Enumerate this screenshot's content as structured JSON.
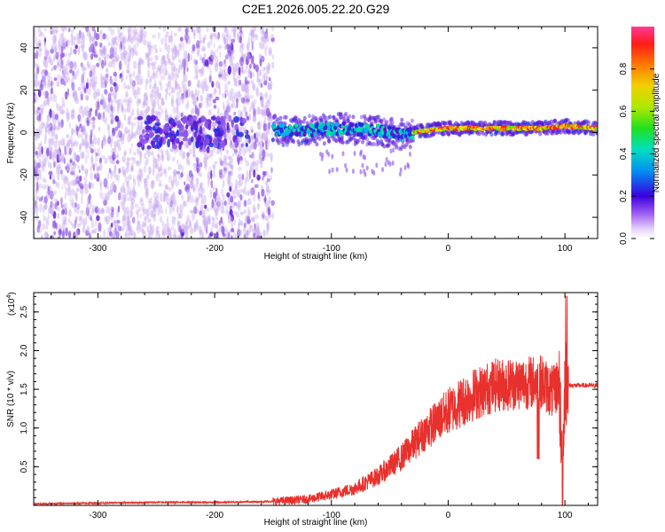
{
  "title": "C2E1.2026.005.22.20.G29",
  "colors": {
    "snr_line": "#e8302c",
    "colormap": [
      "#f1e6fb",
      "#c7a8f0",
      "#8d52e6",
      "#5a16d6",
      "#1f2ee0",
      "#00b4e6",
      "#00e09a",
      "#5ee600",
      "#e6e600",
      "#ff8a00",
      "#ff2020",
      "#ff2a8a"
    ]
  },
  "chart_data": [
    {
      "type": "heatmap",
      "name": "spectrogram",
      "xlabel": "Height of straight line (km)",
      "ylabel": "Frequency (Hz)",
      "xlim": [
        -355,
        128
      ],
      "ylim": [
        -50,
        50
      ],
      "xticks": [
        -300,
        -200,
        -100,
        0,
        100
      ],
      "xtick_labels": [
        "-300",
        "-200",
        "-100",
        "0",
        "100"
      ],
      "yticks": [
        -40,
        -20,
        0,
        20,
        40
      ],
      "ytick_labels": [
        "-40",
        "-20",
        "0",
        "20",
        "40"
      ],
      "grid": false,
      "colorbar": {
        "label": "Normalized spectral amplitude",
        "range": [
          0,
          1
        ],
        "ticks": [
          0,
          0.2,
          0.4,
          0.6,
          0.8
        ],
        "tick_labels": [
          "0.0",
          "0.2",
          "0.4",
          "0.6",
          "0.8"
        ]
      },
      "regions": [
        {
          "x": [
            -355,
            -150
          ],
          "freq": [
            -50,
            50
          ],
          "amplitude": [
            0.0,
            0.15
          ]
        },
        {
          "x": [
            -150,
            -30
          ],
          "freq": [
            -10,
            8
          ],
          "amplitude": [
            0.2,
            0.55
          ]
        },
        {
          "x": [
            -30,
            128
          ],
          "freq": [
            -2,
            6
          ],
          "amplitude": [
            0.6,
            0.95
          ]
        }
      ],
      "ridge": {
        "x": [
          -150,
          -120,
          -90,
          -60,
          -40,
          -20,
          0,
          20,
          40,
          60,
          80,
          100,
          128
        ],
        "freq": [
          1,
          1,
          2,
          1,
          -1,
          1,
          2,
          2,
          2,
          2,
          2,
          3,
          2
        ]
      }
    },
    {
      "type": "line",
      "name": "snr",
      "xlabel": "Height of straight line (km)",
      "ylabel": "SNR (10 * v/v)",
      "y_multiplier": "(x10^4)",
      "y_multiplier_base": "(x10",
      "y_multiplier_exp": "4",
      "y_multiplier_close": ")",
      "xlim": [
        -355,
        128
      ],
      "ylim": [
        0,
        2.75
      ],
      "xticks": [
        -300,
        -200,
        -100,
        0,
        100
      ],
      "xtick_labels": [
        "-300",
        "-200",
        "-100",
        "0",
        "100"
      ],
      "yticks": [
        0.5,
        1.0,
        1.5,
        2.0,
        2.5
      ],
      "ytick_labels": [
        "0.5",
        "1.0",
        "1.5",
        "2.0",
        "2.5"
      ],
      "grid": false,
      "series": [
        {
          "x": [
            -355,
            -300,
            -250,
            -200,
            -150,
            -120,
            -100,
            -80,
            -60,
            -40,
            -20,
            0,
            20,
            40,
            60,
            80,
            90,
            95,
            98,
            100,
            102,
            105,
            110,
            128
          ],
          "y": [
            0.02,
            0.03,
            0.04,
            0.04,
            0.05,
            0.08,
            0.14,
            0.22,
            0.38,
            0.62,
            0.95,
            1.22,
            1.42,
            1.55,
            1.58,
            1.6,
            1.45,
            1.6,
            0.35,
            1.68,
            1.55,
            1.55,
            1.55,
            1.55
          ]
        }
      ]
    }
  ]
}
